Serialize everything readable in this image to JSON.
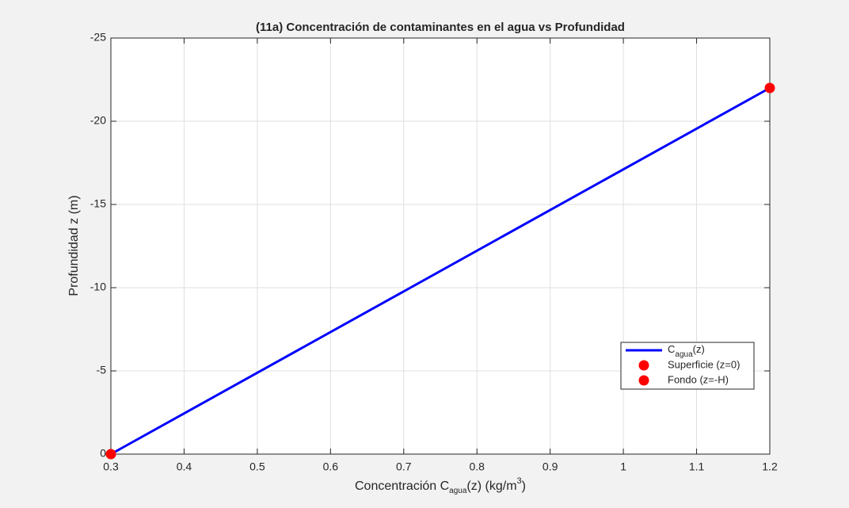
{
  "chart_data": {
    "type": "line",
    "title": "(11a) Concentración de contaminantes en el agua vs Profundidad",
    "xlabel": [
      "Concentración  C",
      "agua",
      "(z)  (kg/m",
      "3",
      ")"
    ],
    "ylabel": "Profundidad z (m)",
    "xlim": [
      0.3,
      1.2
    ],
    "ylim": [
      0,
      -25
    ],
    "xticks": [
      0.3,
      0.4,
      0.5,
      0.6,
      0.7,
      0.8,
      0.9,
      1,
      1.1,
      1.2
    ],
    "yticks": [
      0,
      -5,
      -10,
      -15,
      -20,
      -25
    ],
    "grid": true,
    "legend": "southeast",
    "series": [
      {
        "name": [
          "C",
          "agua",
          "(z)"
        ],
        "type": "line",
        "color": "#0000ff",
        "x": [
          0.3,
          1.2
        ],
        "values": [
          0,
          -22
        ]
      },
      {
        "name": "Superficie (z=0)",
        "type": "scatter",
        "color": "#ff0000",
        "x": [
          0.3
        ],
        "values": [
          0
        ]
      },
      {
        "name": "Fondo (z=-H)",
        "type": "scatter",
        "color": "#ff0000",
        "x": [
          1.2
        ],
        "values": [
          -22
        ]
      }
    ]
  }
}
